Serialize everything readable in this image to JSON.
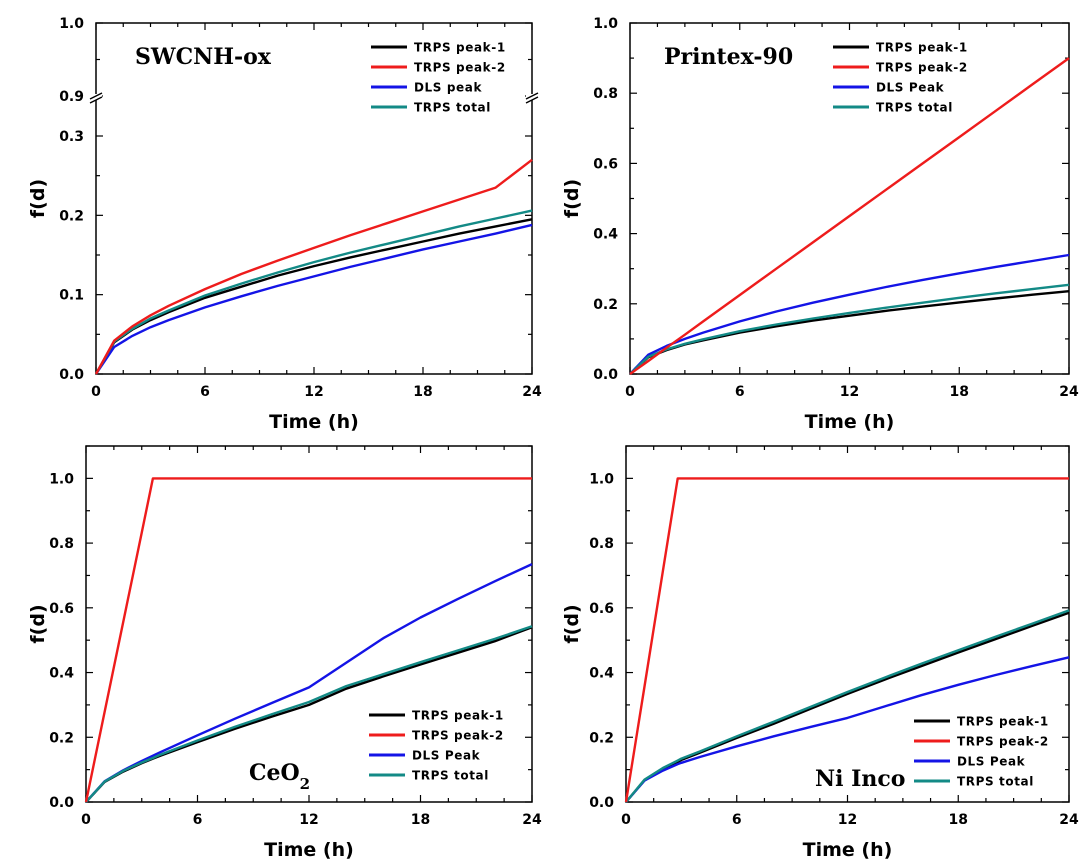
{
  "colors": {
    "TRPS peak-1": "#000000",
    "TRPS peak-2": "#ee1c1c",
    "DLS": "#1414e6",
    "TRPS total": "#138a86"
  },
  "chart_data": [
    {
      "type": "line",
      "title": "SWCNH-ox",
      "xlabel": "Time (h)",
      "ylabel": "f(d)",
      "xlim": [
        0,
        24
      ],
      "ylim": [
        0,
        1.0
      ],
      "axis_break": {
        "lower_range": [
          0,
          0.3
        ],
        "upper_range": [
          0.9,
          1.0
        ]
      },
      "x_ticks": [
        "0",
        "6",
        "12",
        "18",
        "24"
      ],
      "y_ticks": [
        "0.0",
        "0.1",
        "0.2",
        "0.3",
        "0.9",
        "1.0"
      ],
      "legend_position": "top-right",
      "x": [
        0,
        1,
        2,
        3,
        4,
        6,
        8,
        10,
        12,
        14,
        16,
        18,
        20,
        22,
        24
      ],
      "series": [
        {
          "name": "TRPS peak-1",
          "color_key": "TRPS peak-1",
          "values": [
            0,
            0.04,
            0.056,
            0.068,
            0.078,
            0.096,
            0.11,
            0.124,
            0.136,
            0.147,
            0.157,
            0.167,
            0.177,
            0.186,
            0.195
          ]
        },
        {
          "name": "TRPS peak-2",
          "color_key": "TRPS peak-2",
          "values": [
            0,
            0.042,
            0.06,
            0.074,
            0.086,
            0.107,
            0.126,
            0.143,
            0.159,
            0.175,
            0.19,
            0.205,
            0.22,
            0.235,
            0.27
          ]
        },
        {
          "name": "DLS peak",
          "color_key": "DLS",
          "values": [
            0,
            0.034,
            0.048,
            0.059,
            0.068,
            0.084,
            0.098,
            0.111,
            0.123,
            0.135,
            0.146,
            0.157,
            0.167,
            0.177,
            0.188
          ]
        },
        {
          "name": "TRPS total",
          "color_key": "TRPS total",
          "values": [
            0,
            0.041,
            0.057,
            0.07,
            0.08,
            0.099,
            0.114,
            0.128,
            0.141,
            0.153,
            0.164,
            0.175,
            0.186,
            0.196,
            0.206
          ]
        }
      ]
    },
    {
      "type": "line",
      "title": "Printex-90",
      "xlabel": "Time (h)",
      "ylabel": "f(d)",
      "xlim": [
        0,
        24
      ],
      "ylim": [
        0,
        1.0
      ],
      "x_ticks": [
        "0",
        "6",
        "12",
        "18",
        "24"
      ],
      "y_ticks": [
        "0.0",
        "0.2",
        "0.4",
        "0.6",
        "0.8",
        "1.0"
      ],
      "legend_position": "top-right",
      "x": [
        0,
        1,
        2,
        3,
        4,
        6,
        8,
        10,
        12,
        14,
        16,
        18,
        20,
        22,
        24
      ],
      "series": [
        {
          "name": "TRPS peak-1",
          "color_key": "TRPS peak-1",
          "values": [
            0,
            0.048,
            0.068,
            0.084,
            0.096,
            0.118,
            0.136,
            0.152,
            0.166,
            0.18,
            0.192,
            0.204,
            0.215,
            0.226,
            0.236
          ]
        },
        {
          "name": "TRPS peak-2",
          "color_key": "TRPS peak-2",
          "values": [
            0,
            0.037,
            0.075,
            0.112,
            0.15,
            0.225,
            0.3,
            0.375,
            0.45,
            0.525,
            0.6,
            0.675,
            0.75,
            0.825,
            0.9
          ]
        },
        {
          "name": "DLS Peak",
          "color_key": "DLS",
          "values": [
            0,
            0.055,
            0.08,
            0.1,
            0.118,
            0.15,
            0.178,
            0.203,
            0.226,
            0.248,
            0.268,
            0.287,
            0.305,
            0.322,
            0.339
          ]
        },
        {
          "name": "TRPS total",
          "color_key": "TRPS total",
          "values": [
            0,
            0.049,
            0.07,
            0.086,
            0.099,
            0.122,
            0.141,
            0.158,
            0.174,
            0.189,
            0.203,
            0.217,
            0.23,
            0.242,
            0.254
          ]
        }
      ]
    },
    {
      "type": "line",
      "title": "CeO",
      "title_subscript": "2",
      "xlabel": "Time (h)",
      "ylabel": "f(d)",
      "xlim": [
        0,
        24
      ],
      "ylim": [
        0,
        1.1
      ],
      "x_ticks": [
        "0",
        "6",
        "12",
        "18",
        "24"
      ],
      "y_ticks": [
        "0.0",
        "0.2",
        "0.4",
        "0.6",
        "0.8",
        "1.0"
      ],
      "legend_position": "bottom-right",
      "x": [
        0,
        1,
        2,
        3,
        3.6,
        4,
        6,
        8,
        10,
        12,
        14,
        16,
        18,
        20,
        22,
        24
      ],
      "series": [
        {
          "name": "TRPS peak-1",
          "color_key": "TRPS peak-1",
          "values": [
            0,
            0.062,
            0.094,
            0.12,
            0.134,
            0.143,
            0.185,
            0.226,
            0.264,
            0.3,
            0.35,
            0.388,
            0.425,
            0.461,
            0.497,
            0.54
          ]
        },
        {
          "name": "TRPS peak-2",
          "color_key": "TRPS peak-2",
          "values": [
            0,
            0.278,
            0.556,
            0.833,
            1.0,
            1.0,
            1.0,
            1.0,
            1.0,
            1.0,
            1.0,
            1.0,
            1.0,
            1.0,
            1.0,
            1.0
          ]
        },
        {
          "name": "DLS Peak",
          "color_key": "DLS",
          "values": [
            0,
            0.064,
            0.098,
            0.127,
            0.143,
            0.154,
            0.206,
            0.257,
            0.306,
            0.354,
            0.43,
            0.506,
            0.57,
            0.627,
            0.682,
            0.735
          ]
        },
        {
          "name": "TRPS total",
          "color_key": "TRPS total",
          "values": [
            0,
            0.063,
            0.096,
            0.122,
            0.136,
            0.146,
            0.19,
            0.232,
            0.271,
            0.309,
            0.358,
            0.395,
            0.432,
            0.468,
            0.504,
            0.543
          ]
        }
      ]
    },
    {
      "type": "line",
      "title": "Ni Inco",
      "xlabel": "Time (h)",
      "ylabel": "f(d)",
      "xlim": [
        0,
        24
      ],
      "ylim": [
        0,
        1.1
      ],
      "x_ticks": [
        "0",
        "6",
        "12",
        "18",
        "24"
      ],
      "y_ticks": [
        "0.0",
        "0.2",
        "0.4",
        "0.6",
        "0.8",
        "1.0"
      ],
      "legend_position": "bottom-right",
      "x": [
        0,
        1,
        2,
        2.8,
        3,
        4,
        6,
        8,
        10,
        12,
        14,
        16,
        18,
        20,
        22,
        24
      ],
      "series": [
        {
          "name": "TRPS peak-1",
          "color_key": "TRPS peak-1",
          "values": [
            0,
            0.067,
            0.102,
            0.124,
            0.13,
            0.152,
            0.198,
            0.242,
            0.288,
            0.334,
            0.378,
            0.42,
            0.462,
            0.503,
            0.544,
            0.585
          ]
        },
        {
          "name": "TRPS peak-2",
          "color_key": "TRPS peak-2",
          "values": [
            0,
            0.357,
            0.714,
            1.0,
            1.0,
            1.0,
            1.0,
            1.0,
            1.0,
            1.0,
            1.0,
            1.0,
            1.0,
            1.0,
            1.0,
            1.0
          ]
        },
        {
          "name": "DLS Peak",
          "color_key": "DLS",
          "values": [
            0,
            0.066,
            0.097,
            0.117,
            0.121,
            0.139,
            0.172,
            0.203,
            0.232,
            0.26,
            0.295,
            0.33,
            0.362,
            0.392,
            0.42,
            0.447
          ]
        },
        {
          "name": "TRPS total",
          "color_key": "TRPS total",
          "values": [
            0,
            0.069,
            0.105,
            0.128,
            0.134,
            0.156,
            0.203,
            0.248,
            0.294,
            0.34,
            0.384,
            0.427,
            0.469,
            0.51,
            0.551,
            0.592
          ]
        }
      ]
    }
  ]
}
